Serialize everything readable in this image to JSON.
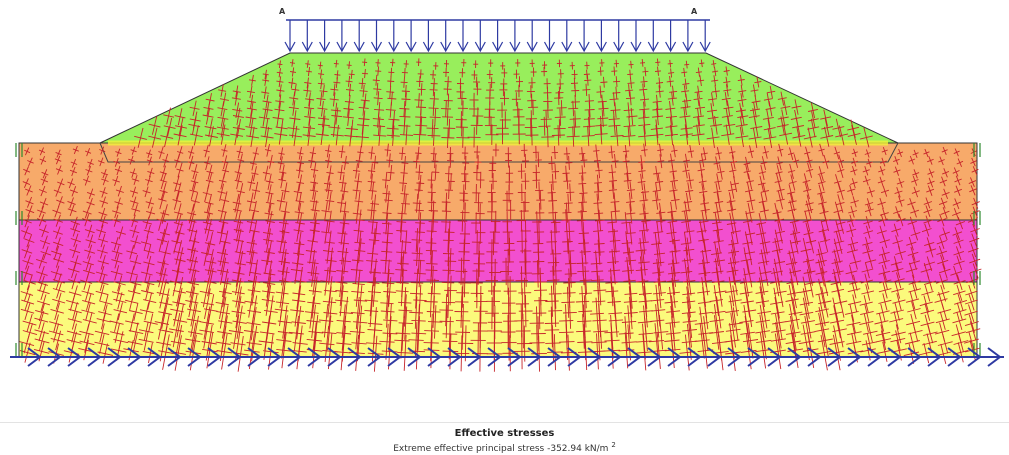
{
  "model": {
    "point_labels": [
      "A",
      "A"
    ],
    "colors": {
      "embankment": "#98ee5c",
      "layer_orange": "#f7aa6a",
      "layer_magenta": "#f24fcf",
      "layer_yellow": "#fbfa7c",
      "stress_cross": "#c6242a",
      "load_arrow": "#2e3aa2",
      "fixity_arrow": "#2e3aa2",
      "boundary_line": "#333333",
      "interface": "#f2f23a"
    }
  },
  "caption": {
    "title": "Effective stresses",
    "subtitle": "Extreme effective principal stress -352.94 kN/m",
    "subtitle_exponent": "2"
  }
}
